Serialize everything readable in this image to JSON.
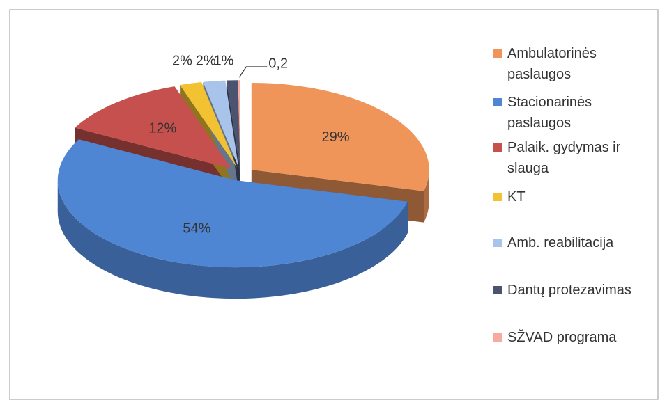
{
  "chart_data": {
    "type": "pie",
    "categories": [
      "Ambulatorinės paslaugos",
      "Stacionarinės paslaugos",
      "Palaik. gydymas ir slauga",
      "KT",
      "Amb. reabilitacija",
      "Dantų protezavimas",
      "SŽVAD programa"
    ],
    "values": [
      29,
      54,
      12,
      2,
      2,
      1,
      0.2
    ],
    "value_labels": [
      "29%",
      "54%",
      "12%",
      "2%",
      "2%",
      "1%",
      "0,2"
    ],
    "colors": [
      "#f0955a",
      "#4f86d3",
      "#c5504d",
      "#f2c232",
      "#a8c4ea",
      "#4a5470",
      "#f6aaa0"
    ],
    "legend": "right"
  }
}
